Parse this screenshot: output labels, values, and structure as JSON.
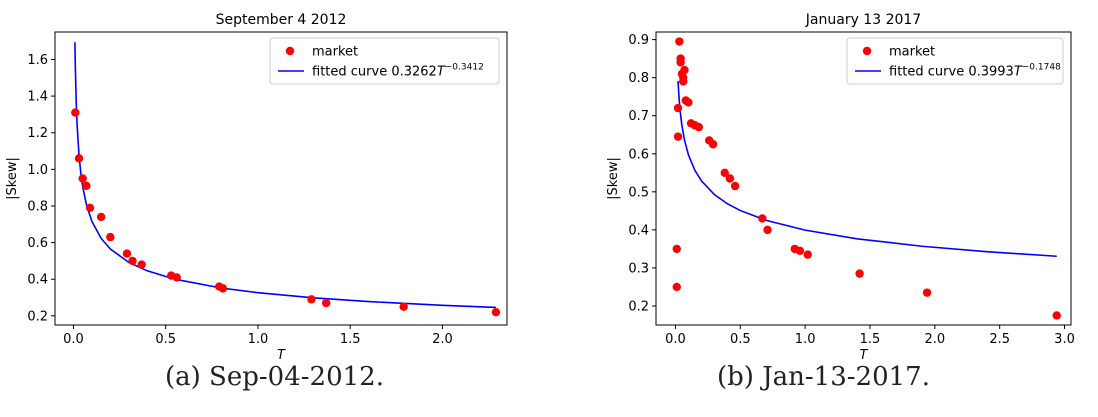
{
  "chart_data": [
    {
      "type": "scatter",
      "title": "September 4 2012",
      "xlabel": "T",
      "ylabel": "|Skew|",
      "xlim": [
        -0.1,
        2.35
      ],
      "ylim": [
        0.15,
        1.75
      ],
      "xticks": [
        0.0,
        0.5,
        1.0,
        1.5,
        2.0
      ],
      "xtick_labels": [
        "0.0",
        "0.5",
        "1.0",
        "1.5",
        "2.0"
      ],
      "yticks": [
        0.2,
        0.4,
        0.6,
        0.8,
        1.0,
        1.2,
        1.4,
        1.6
      ],
      "ytick_labels": [
        "0.2",
        "0.4",
        "0.6",
        "0.8",
        "1.0",
        "1.2",
        "1.4",
        "1.6"
      ],
      "legend_position": "top-right",
      "caption": "(a) Sep-04-2012.",
      "series": [
        {
          "name": "market",
          "kind": "scatter",
          "color": "#ff0000",
          "x": [
            0.01,
            0.03,
            0.05,
            0.07,
            0.09,
            0.15,
            0.2,
            0.29,
            0.32,
            0.37,
            0.53,
            0.56,
            0.79,
            0.81,
            1.29,
            1.37,
            1.79,
            2.29
          ],
          "y": [
            1.31,
            1.06,
            0.95,
            0.91,
            0.79,
            0.74,
            0.63,
            0.54,
            0.5,
            0.48,
            0.42,
            0.41,
            0.36,
            0.35,
            0.29,
            0.27,
            0.25,
            0.22
          ]
        },
        {
          "name": "fitted curve 0.3262",
          "name_exponent": "−0.3412",
          "kind": "line",
          "color": "#0000ff",
          "a": 0.3262,
          "b": -0.3412,
          "x_range": [
            0.008,
            2.29
          ],
          "x_points": [
            0.008,
            0.01,
            0.015,
            0.02,
            0.03,
            0.04,
            0.05,
            0.07,
            0.1,
            0.15,
            0.2,
            0.3,
            0.4,
            0.55,
            0.8,
            1.0,
            1.3,
            1.6,
            2.0,
            2.29
          ]
        }
      ]
    },
    {
      "type": "scatter",
      "title": "January 13 2017",
      "xlabel": "T",
      "ylabel": "|Skew|",
      "xlim": [
        -0.15,
        3.05
      ],
      "ylim": [
        0.15,
        0.92
      ],
      "xticks": [
        0.0,
        0.5,
        1.0,
        1.5,
        2.0,
        2.5,
        3.0
      ],
      "xtick_labels": [
        "0.0",
        "0.5",
        "1.0",
        "1.5",
        "2.0",
        "2.5",
        "3.0"
      ],
      "yticks": [
        0.2,
        0.3,
        0.4,
        0.5,
        0.6,
        0.7,
        0.8,
        0.9
      ],
      "ytick_labels": [
        "0.2",
        "0.3",
        "0.4",
        "0.5",
        "0.6",
        "0.7",
        "0.8",
        "0.9"
      ],
      "legend_position": "top-right",
      "caption": "(b) Jan-13-2017.",
      "series": [
        {
          "name": "market",
          "kind": "scatter",
          "color": "#ff0000",
          "x": [
            0.01,
            0.01,
            0.02,
            0.02,
            0.03,
            0.04,
            0.04,
            0.05,
            0.06,
            0.06,
            0.07,
            0.08,
            0.1,
            0.12,
            0.15,
            0.18,
            0.26,
            0.29,
            0.38,
            0.42,
            0.46,
            0.67,
            0.71,
            0.92,
            0.96,
            1.02,
            1.42,
            1.94,
            2.94
          ],
          "y": [
            0.25,
            0.35,
            0.645,
            0.72,
            0.895,
            0.85,
            0.84,
            0.81,
            0.79,
            0.8,
            0.82,
            0.74,
            0.735,
            0.68,
            0.675,
            0.67,
            0.635,
            0.625,
            0.55,
            0.535,
            0.515,
            0.43,
            0.4,
            0.35,
            0.345,
            0.335,
            0.285,
            0.235,
            0.175
          ]
        },
        {
          "name": "fitted curve 0.3993",
          "name_exponent": "−0.1748",
          "kind": "line",
          "color": "#0000ff",
          "a": 0.3993,
          "b": -0.1748,
          "x_range": [
            0.02,
            2.94
          ],
          "x_points": [
            0.02,
            0.025,
            0.03,
            0.04,
            0.05,
            0.07,
            0.1,
            0.15,
            0.2,
            0.3,
            0.4,
            0.5,
            0.7,
            1.0,
            1.4,
            1.9,
            2.4,
            2.94
          ]
        }
      ]
    }
  ]
}
